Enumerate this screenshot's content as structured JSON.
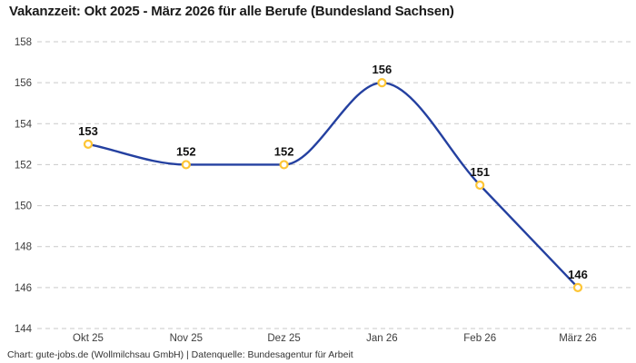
{
  "title": "Vakanzzeit: Okt 2025 - März 2026 für alle Berufe (Bundesland Sachsen)",
  "footer": {
    "text": "Chart: gute-jobs.de (Wollmilchsau GmbH) | Datenquelle: Bundesagentur für Arbeit"
  },
  "chart_data": {
    "type": "line",
    "title": "Vakanzzeit: Okt 2025 - März 2026 für alle Berufe (Bundesland Sachsen)",
    "categories": [
      "Okt 25",
      "Nov 25",
      "Dez 25",
      "Jan 26",
      "Feb 26",
      "März 26"
    ],
    "values": [
      153,
      152,
      152,
      156,
      151,
      146
    ],
    "data_labels": [
      "153",
      "152",
      "152",
      "156",
      "151",
      "146"
    ],
    "xlabel": "",
    "ylabel": "",
    "ylim": [
      144,
      158
    ],
    "yticks": [
      158,
      156,
      154,
      152,
      150,
      148,
      146,
      144
    ],
    "grid": "horizontal-dashed",
    "legend": "none",
    "smoothing": "monotone",
    "colors": {
      "line": "#2440a0",
      "marker_ring": "#fdc535",
      "marker_fill": "#ffffff",
      "grid_line": "#c9c9c9",
      "tick_text": "#3d3d3d",
      "value_label": "#111111",
      "title_text": "#1a1a1a",
      "background": "#ffffff"
    }
  }
}
